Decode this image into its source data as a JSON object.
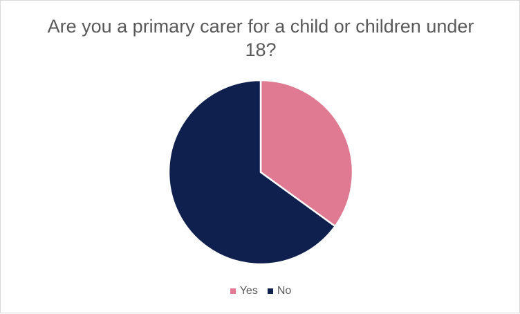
{
  "chart_data": {
    "type": "pie",
    "title": "Are you a primary carer for a child or children under 18?",
    "categories": [
      "Yes",
      "No"
    ],
    "values": [
      35,
      65
    ],
    "colors": [
      "#E07A93",
      "#0F1F4E"
    ],
    "legend_position": "bottom",
    "start_angle_deg": 0,
    "direction": "clockwise"
  }
}
